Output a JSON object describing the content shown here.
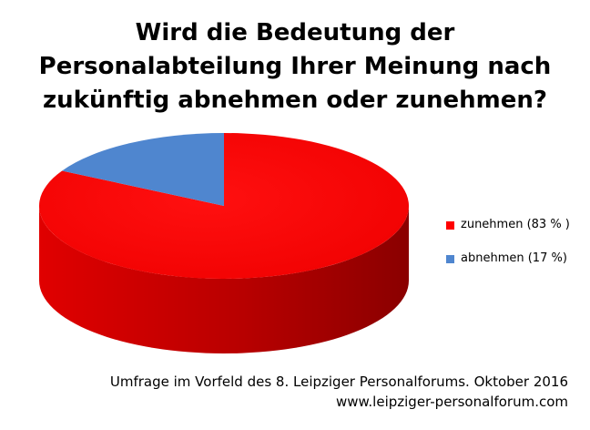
{
  "chart_data": {
    "type": "pie",
    "title_lines": [
      "Wird die Bedeutung der",
      "Personalabteilung Ihrer Meinung nach",
      "zukünftig abnehmen oder zunehmen?"
    ],
    "slices": [
      {
        "label": "zunehmen (83 % )",
        "value": 83,
        "color": "#ff0000",
        "side_color": "#c00000"
      },
      {
        "label": "abnehmen (17 %)",
        "value": 17,
        "color": "#4f86cf",
        "side_color": "#3a6aa8"
      }
    ],
    "legend_position": "right",
    "style": "3d"
  },
  "footer": {
    "line1": "Umfrage im Vorfeld des 8. Leipziger Personalforums. Oktober 2016",
    "line2": "www.leipziger-personalforum.com"
  }
}
